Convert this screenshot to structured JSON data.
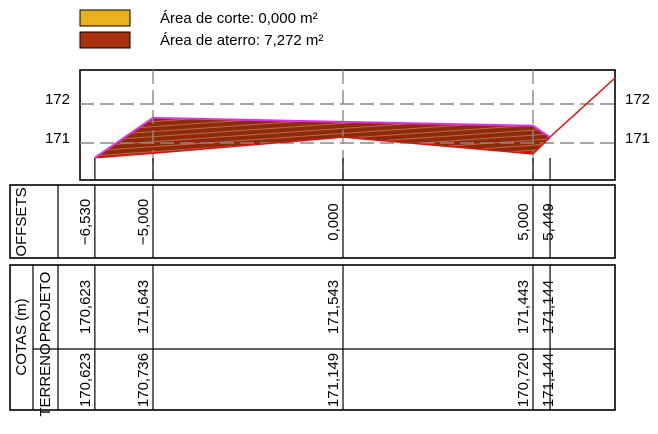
{
  "legend": [
    {
      "label": "Área de corte: 0,000 m²",
      "color": "#e8b21c"
    },
    {
      "label": "Área de aterro: 7,272 m²",
      "color": "#a8300c"
    }
  ],
  "profile": {
    "yticks": [
      172,
      171
    ]
  },
  "offsets": {
    "title": "OFFSETS",
    "values": [
      "−6,530",
      "−5,000",
      "0,000",
      "5,000",
      "5,449"
    ]
  },
  "cotas": {
    "title": "COTAS (m)",
    "projeto": {
      "title": "PROJETO",
      "values": [
        "170,623",
        "171,643",
        "171,543",
        "171,443",
        "171,144"
      ]
    },
    "terreno": {
      "title": "TERRENO",
      "values": [
        "170,623",
        "170,736",
        "171,149",
        "170,720",
        "171,144"
      ]
    }
  }
}
